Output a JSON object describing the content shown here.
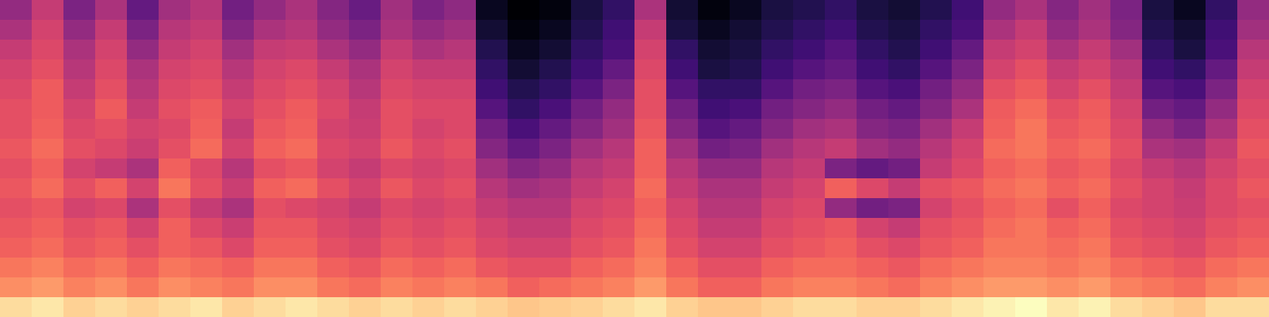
{
  "chart_data": {
    "type": "heatmap",
    "color": "magma",
    "tick_labels": false,
    "values": [
      [
        45,
        55,
        40,
        50,
        35,
        48,
        52,
        38,
        45,
        50,
        42,
        36,
        48,
        40,
        44,
        15,
        10,
        12,
        20,
        25,
        50,
        18,
        12,
        15,
        20,
        22,
        25,
        20,
        18,
        22,
        28,
        45,
        50,
        42,
        48,
        40,
        20,
        15,
        25,
        45
      ],
      [
        50,
        58,
        45,
        55,
        40,
        52,
        55,
        42,
        50,
        52,
        45,
        40,
        50,
        45,
        48,
        18,
        12,
        15,
        22,
        28,
        55,
        20,
        15,
        18,
        22,
        25,
        28,
        22,
        20,
        25,
        30,
        50,
        55,
        45,
        50,
        42,
        22,
        18,
        28,
        48
      ],
      [
        55,
        60,
        50,
        58,
        45,
        55,
        58,
        48,
        55,
        56,
        50,
        45,
        55,
        50,
        52,
        22,
        15,
        18,
        25,
        30,
        58,
        25,
        18,
        20,
        25,
        28,
        32,
        25,
        22,
        28,
        35,
        55,
        58,
        50,
        55,
        48,
        25,
        20,
        30,
        52
      ],
      [
        58,
        62,
        52,
        60,
        50,
        58,
        60,
        52,
        58,
        60,
        55,
        50,
        58,
        55,
        55,
        25,
        18,
        22,
        28,
        35,
        60,
        28,
        20,
        22,
        28,
        32,
        35,
        28,
        25,
        32,
        40,
        58,
        62,
        55,
        58,
        52,
        28,
        25,
        35,
        55
      ],
      [
        60,
        65,
        55,
        62,
        52,
        60,
        62,
        55,
        60,
        62,
        58,
        52,
        60,
        58,
        58,
        28,
        22,
        25,
        32,
        40,
        62,
        32,
        25,
        25,
        32,
        38,
        40,
        32,
        30,
        38,
        45,
        62,
        65,
        58,
        62,
        55,
        32,
        30,
        40,
        58
      ],
      [
        62,
        65,
        58,
        65,
        55,
        62,
        65,
        58,
        62,
        65,
        60,
        55,
        62,
        60,
        60,
        32,
        25,
        30,
        38,
        45,
        62,
        38,
        28,
        30,
        38,
        42,
        45,
        38,
        35,
        42,
        50,
        65,
        68,
        62,
        65,
        58,
        38,
        35,
        45,
        60
      ],
      [
        62,
        66,
        60,
        62,
        58,
        60,
        66,
        55,
        64,
        66,
        58,
        56,
        62,
        58,
        60,
        38,
        30,
        35,
        42,
        48,
        64,
        42,
        32,
        35,
        42,
        48,
        50,
        42,
        40,
        48,
        55,
        66,
        70,
        64,
        66,
        60,
        45,
        40,
        50,
        62
      ],
      [
        64,
        68,
        62,
        60,
        56,
        62,
        68,
        58,
        66,
        68,
        60,
        58,
        64,
        60,
        62,
        42,
        35,
        40,
        48,
        52,
        66,
        48,
        38,
        40,
        48,
        52,
        55,
        48,
        45,
        52,
        58,
        68,
        70,
        66,
        68,
        62,
        50,
        48,
        55,
        64
      ],
      [
        62,
        66,
        58,
        55,
        50,
        66,
        60,
        52,
        62,
        64,
        58,
        55,
        60,
        58,
        60,
        48,
        42,
        45,
        52,
        55,
        66,
        52,
        45,
        45,
        52,
        55,
        40,
        35,
        38,
        55,
        60,
        66,
        68,
        64,
        66,
        60,
        55,
        52,
        58,
        62
      ],
      [
        64,
        68,
        62,
        66,
        58,
        70,
        62,
        56,
        66,
        68,
        62,
        58,
        64,
        60,
        62,
        52,
        48,
        50,
        55,
        58,
        68,
        55,
        50,
        50,
        55,
        58,
        66,
        60,
        55,
        62,
        64,
        68,
        70,
        66,
        68,
        62,
        58,
        55,
        60,
        64
      ],
      [
        62,
        64,
        58,
        60,
        50,
        62,
        55,
        50,
        62,
        60,
        58,
        55,
        60,
        58,
        60,
        55,
        52,
        52,
        58,
        60,
        66,
        58,
        52,
        52,
        58,
        60,
        45,
        38,
        40,
        58,
        62,
        66,
        68,
        62,
        66,
        60,
        58,
        56,
        60,
        62
      ],
      [
        64,
        66,
        62,
        64,
        58,
        66,
        60,
        56,
        64,
        64,
        60,
        58,
        62,
        60,
        62,
        58,
        55,
        55,
        60,
        62,
        68,
        60,
        55,
        55,
        60,
        62,
        64,
        58,
        55,
        62,
        64,
        68,
        70,
        66,
        68,
        62,
        60,
        58,
        62,
        64
      ],
      [
        66,
        68,
        64,
        66,
        62,
        66,
        64,
        60,
        66,
        66,
        62,
        60,
        64,
        62,
        64,
        60,
        58,
        58,
        62,
        64,
        70,
        62,
        58,
        58,
        62,
        64,
        66,
        62,
        60,
        64,
        66,
        70,
        70,
        68,
        70,
        64,
        62,
        60,
        64,
        66
      ],
      [
        70,
        72,
        68,
        70,
        66,
        70,
        68,
        66,
        70,
        70,
        66,
        64,
        68,
        66,
        68,
        64,
        62,
        62,
        66,
        68,
        72,
        66,
        62,
        62,
        66,
        68,
        68,
        66,
        64,
        68,
        70,
        72,
        72,
        70,
        72,
        68,
        66,
        64,
        68,
        70
      ],
      [
        74,
        76,
        72,
        74,
        70,
        74,
        72,
        70,
        74,
        74,
        70,
        68,
        72,
        70,
        72,
        70,
        66,
        68,
        70,
        72,
        76,
        70,
        66,
        66,
        70,
        72,
        72,
        70,
        68,
        72,
        74,
        76,
        76,
        74,
        76,
        72,
        70,
        68,
        72,
        74
      ],
      [
        88,
        90,
        86,
        88,
        86,
        88,
        90,
        86,
        88,
        90,
        88,
        86,
        88,
        86,
        88,
        86,
        84,
        85,
        86,
        88,
        90,
        86,
        84,
        84,
        86,
        88,
        88,
        86,
        86,
        88,
        90,
        92,
        94,
        90,
        92,
        88,
        86,
        84,
        88,
        88
      ]
    ]
  }
}
